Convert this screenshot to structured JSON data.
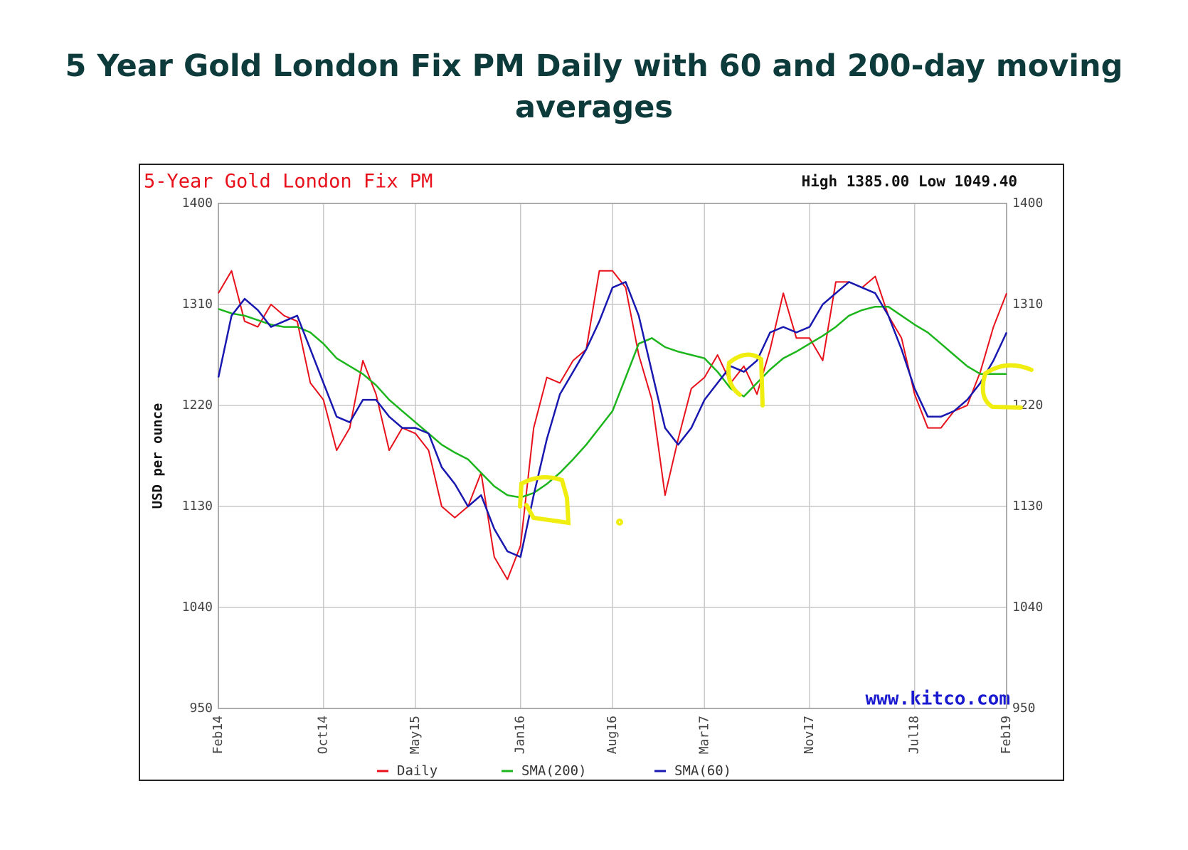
{
  "page_title": "5 Year Gold London Fix PM Daily with 60 and 200-day moving averages",
  "chart_data": {
    "type": "line",
    "title": "5-Year Gold London Fix PM",
    "subtitle": "High 1385.00 Low 1049.40",
    "y_label": "USD per ounce",
    "source": "www.kitco.com",
    "x": [
      "Feb14",
      null,
      null,
      null,
      null,
      null,
      null,
      null,
      "Oct14",
      null,
      null,
      null,
      null,
      null,
      null,
      "May15",
      null,
      null,
      null,
      null,
      null,
      null,
      null,
      "Jan16",
      null,
      null,
      null,
      null,
      null,
      null,
      "Aug16",
      null,
      null,
      null,
      null,
      null,
      null,
      "Mar17",
      null,
      null,
      null,
      null,
      null,
      null,
      null,
      "Nov17",
      null,
      null,
      null,
      null,
      null,
      null,
      null,
      "Jul18",
      null,
      null,
      null,
      null,
      null,
      null,
      "Feb19"
    ],
    "ylim": [
      950,
      1400
    ],
    "yticks": [
      950,
      1040,
      1130,
      1220,
      1310,
      1400
    ],
    "grid": true,
    "series": [
      {
        "name": "Daily",
        "color": "#e8111b",
        "values": [
          1320,
          1340,
          1295,
          1290,
          1310,
          1300,
          1295,
          1240,
          1225,
          1180,
          1200,
          1260,
          1230,
          1180,
          1200,
          1195,
          1180,
          1130,
          1120,
          1130,
          1160,
          1085,
          1065,
          1095,
          1200,
          1245,
          1240,
          1260,
          1270,
          1340,
          1340,
          1325,
          1265,
          1225,
          1140,
          1190,
          1235,
          1245,
          1265,
          1240,
          1255,
          1230,
          1270,
          1320,
          1280,
          1280,
          1260,
          1330,
          1330,
          1325,
          1335,
          1300,
          1280,
          1230,
          1200,
          1200,
          1215,
          1220,
          1250,
          1290,
          1320
        ]
      },
      {
        "name": "SMA(200)",
        "color": "#1cb51c",
        "values": [
          1306,
          1302,
          1300,
          1296,
          1292,
          1290,
          1290,
          1285,
          1275,
          1262,
          1255,
          1248,
          1238,
          1225,
          1215,
          1205,
          1195,
          1185,
          1178,
          1172,
          1160,
          1148,
          1140,
          1138,
          1142,
          1150,
          1160,
          1172,
          1185,
          1200,
          1215,
          1245,
          1275,
          1280,
          1272,
          1268,
          1265,
          1262,
          1250,
          1235,
          1228,
          1240,
          1252,
          1262,
          1268,
          1275,
          1282,
          1290,
          1300,
          1305,
          1308,
          1308,
          1300,
          1292,
          1285,
          1275,
          1265,
          1255,
          1248,
          1248,
          1248
        ]
      },
      {
        "name": "SMA(60)",
        "color": "#1818b0",
        "values": [
          1245,
          1300,
          1315,
          1305,
          1290,
          1295,
          1300,
          1270,
          1240,
          1210,
          1205,
          1225,
          1225,
          1210,
          1200,
          1200,
          1195,
          1165,
          1150,
          1130,
          1140,
          1110,
          1090,
          1085,
          1140,
          1190,
          1230,
          1250,
          1270,
          1295,
          1325,
          1330,
          1300,
          1250,
          1200,
          1185,
          1200,
          1225,
          1240,
          1255,
          1250,
          1260,
          1285,
          1290,
          1285,
          1290,
          1310,
          1320,
          1330,
          1325,
          1320,
          1300,
          1270,
          1235,
          1210,
          1210,
          1215,
          1225,
          1240,
          1260,
          1285
        ]
      }
    ]
  }
}
